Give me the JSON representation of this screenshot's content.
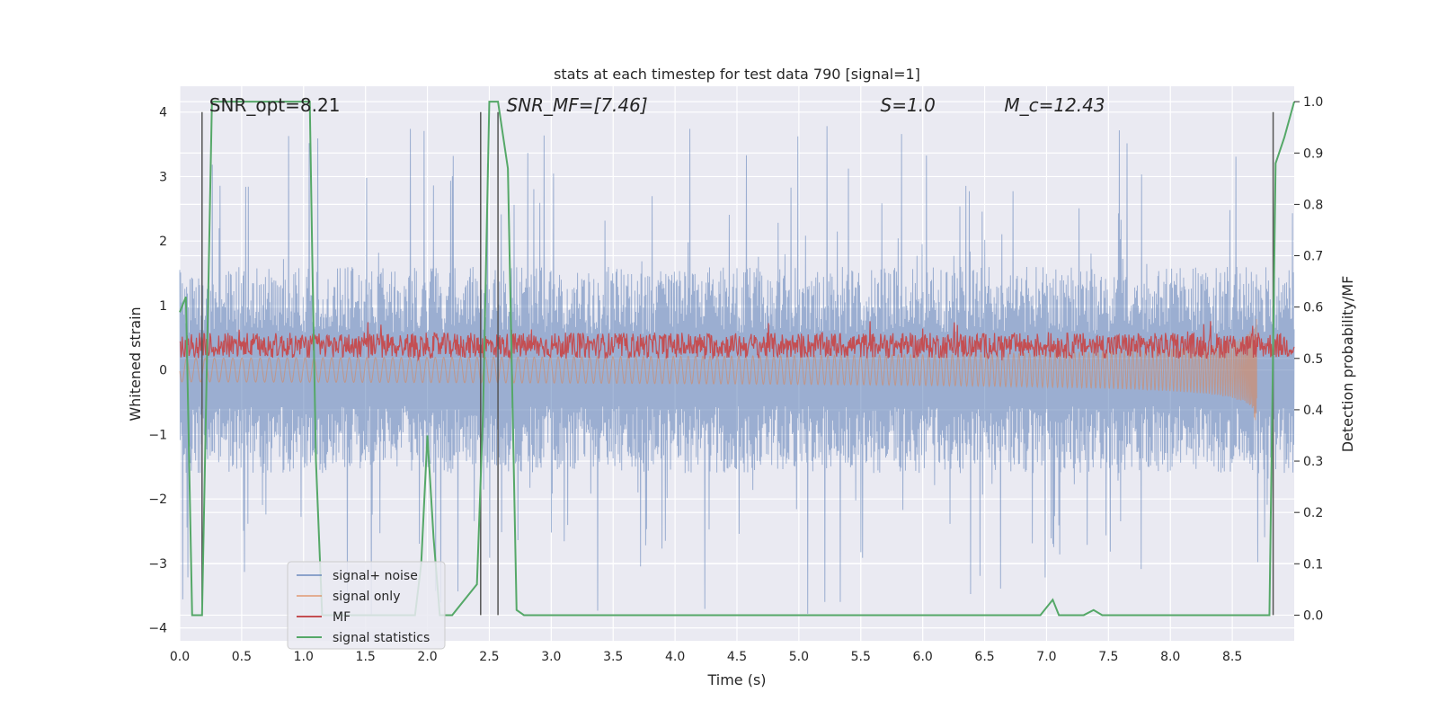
{
  "chart_data": {
    "type": "line",
    "title": "stats at each timestep for test data 790 [signal=1]",
    "xlabel": "Time (s)",
    "ylabel_left": "Whitened strain",
    "ylabel_right": "Detection probability/MF",
    "xlim": [
      0.0,
      9.0
    ],
    "ylim_left": [
      -4.2,
      4.4
    ],
    "ylim_right": [
      -0.05,
      1.03
    ],
    "x_ticks": [
      0.0,
      0.5,
      1.0,
      1.5,
      2.0,
      2.5,
      3.0,
      3.5,
      4.0,
      4.5,
      5.0,
      5.5,
      6.0,
      6.5,
      7.0,
      7.5,
      8.0,
      8.5
    ],
    "x_tick_labels": [
      "0.0",
      "0.5",
      "1.0",
      "1.5",
      "2.0",
      "2.5",
      "3.0",
      "3.5",
      "4.0",
      "4.5",
      "5.0",
      "5.5",
      "6.0",
      "6.5",
      "7.0",
      "7.5",
      "8.0",
      "8.5"
    ],
    "y_ticks_left": [
      -4,
      -3,
      -2,
      -1,
      0,
      1,
      2,
      3,
      4
    ],
    "y_tick_labels_left": [
      "−4",
      "−3",
      "−2",
      "−1",
      "0",
      "1",
      "2",
      "3",
      "4"
    ],
    "y_ticks_right": [
      0.0,
      0.1,
      0.2,
      0.3,
      0.4,
      0.5,
      0.6,
      0.7,
      0.8,
      0.9,
      1.0
    ],
    "y_tick_labels_right": [
      "0.0",
      "0.1",
      "0.2",
      "0.3",
      "0.4",
      "0.5",
      "0.6",
      "0.7",
      "0.8",
      "0.9",
      "1.0"
    ],
    "grid": true,
    "legend_position": "lower-left",
    "annotations": [
      {
        "x": 0.18,
        "text": "SNR_opt=8.21"
      },
      {
        "x": 2.58,
        "text": "SNR_MF=[7.46]"
      },
      {
        "x": 5.6,
        "text": "S=1.0"
      },
      {
        "x": 6.6,
        "text": "M_c=12.43"
      }
    ],
    "vertical_lines_x": [
      0.18,
      2.43,
      2.57,
      8.83
    ],
    "series": [
      {
        "name": "signal+ noise",
        "color": "#4c72b0",
        "axis": "left",
        "kind": "noise-band",
        "envelope_typical": 1.6,
        "envelope_peak": 3.8
      },
      {
        "name": "signal only",
        "color": "#dd8452",
        "axis": "left",
        "kind": "chirp",
        "t_merger": 8.7,
        "amplitude_at_merger": 1.25
      },
      {
        "name": "MF",
        "color": "#c44e52",
        "axis": "right",
        "kind": "band",
        "mean": 0.525,
        "spread": 0.025
      },
      {
        "name": "signal statistics",
        "color": "#55a868",
        "axis": "right",
        "x": [
          0.0,
          0.05,
          0.1,
          0.18,
          0.26,
          0.33,
          0.9,
          1.05,
          1.07,
          1.1,
          1.15,
          1.2,
          1.6,
          1.9,
          1.95,
          2.0,
          2.05,
          2.1,
          2.2,
          2.4,
          2.45,
          2.5,
          2.57,
          2.65,
          2.72,
          2.78,
          3.0,
          6.95,
          7.05,
          7.1,
          7.15,
          7.3,
          7.38,
          7.45,
          8.8,
          8.85,
          8.92,
          9.0
        ],
        "y": [
          0.59,
          0.62,
          0.0,
          0.0,
          1.0,
          1.0,
          1.0,
          1.0,
          0.7,
          0.3,
          0.0,
          0.0,
          0.0,
          0.0,
          0.1,
          0.35,
          0.15,
          0.0,
          0.0,
          0.06,
          0.4,
          1.0,
          1.0,
          0.87,
          0.01,
          0.0,
          0.0,
          0.0,
          0.03,
          0.0,
          0.0,
          0.0,
          0.01,
          0.0,
          0.0,
          0.88,
          0.93,
          1.0
        ]
      }
    ]
  }
}
